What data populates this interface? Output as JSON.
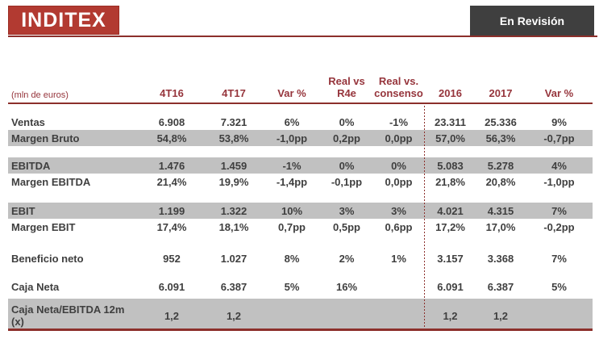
{
  "brand": {
    "logo_text": "INDITEX"
  },
  "badge": {
    "label": "En Revisión"
  },
  "colors": {
    "logo_red": "#b23a31",
    "rule_red": "#8c2f2b",
    "header_text_red": "#96353c",
    "shaded_row_gray": "#c1c1c1",
    "badge_gray": "#3f3f3f",
    "body_text": "#3f3f3f"
  },
  "table": {
    "unit_label": "(mln de euros)",
    "columns": [
      "4T16",
      "4T17",
      "Var %",
      "Real vs\nR4e",
      "Real vs.\nconsenso",
      "2016",
      "2017",
      "Var %"
    ],
    "rows": [
      {
        "label": "Ventas",
        "values": [
          "6.908",
          "7.321",
          "6%",
          "0%",
          "-1%",
          "23.311",
          "25.336",
          "9%"
        ]
      },
      {
        "label": "Margen Bruto",
        "values": [
          "54,8%",
          "53,8%",
          "-1,0pp",
          "0,2pp",
          "0,0pp",
          "57,0%",
          "56,3%",
          "-0,7pp"
        ]
      },
      {
        "label": "EBITDA",
        "values": [
          "1.476",
          "1.459",
          "-1%",
          "0%",
          "0%",
          "5.083",
          "5.278",
          "4%"
        ]
      },
      {
        "label": "Margen EBITDA",
        "values": [
          "21,4%",
          "19,9%",
          "-1,4pp",
          "-0,1pp",
          "0,0pp",
          "21,8%",
          "20,8%",
          "-1,0pp"
        ]
      },
      {
        "label": "EBIT",
        "values": [
          "1.199",
          "1.322",
          "10%",
          "3%",
          "3%",
          "4.021",
          "4.315",
          "7%"
        ]
      },
      {
        "label": "Margen EBIT",
        "values": [
          "17,4%",
          "18,1%",
          "0,7pp",
          "0,5pp",
          "0,6pp",
          "17,2%",
          "17,0%",
          "-0,2pp"
        ]
      },
      {
        "label": "Beneficio neto",
        "values": [
          "952",
          "1.027",
          "8%",
          "2%",
          "1%",
          "3.157",
          "3.368",
          "7%"
        ]
      },
      {
        "label": "Caja Neta",
        "values": [
          "6.091",
          "6.387",
          "5%",
          "16%",
          "",
          "6.091",
          "6.387",
          "5%"
        ]
      },
      {
        "label": "Caja Neta/EBITDA 12m (x)",
        "values": [
          "1,2",
          "1,2",
          "",
          "",
          "",
          "1,2",
          "1,2",
          ""
        ]
      }
    ]
  }
}
